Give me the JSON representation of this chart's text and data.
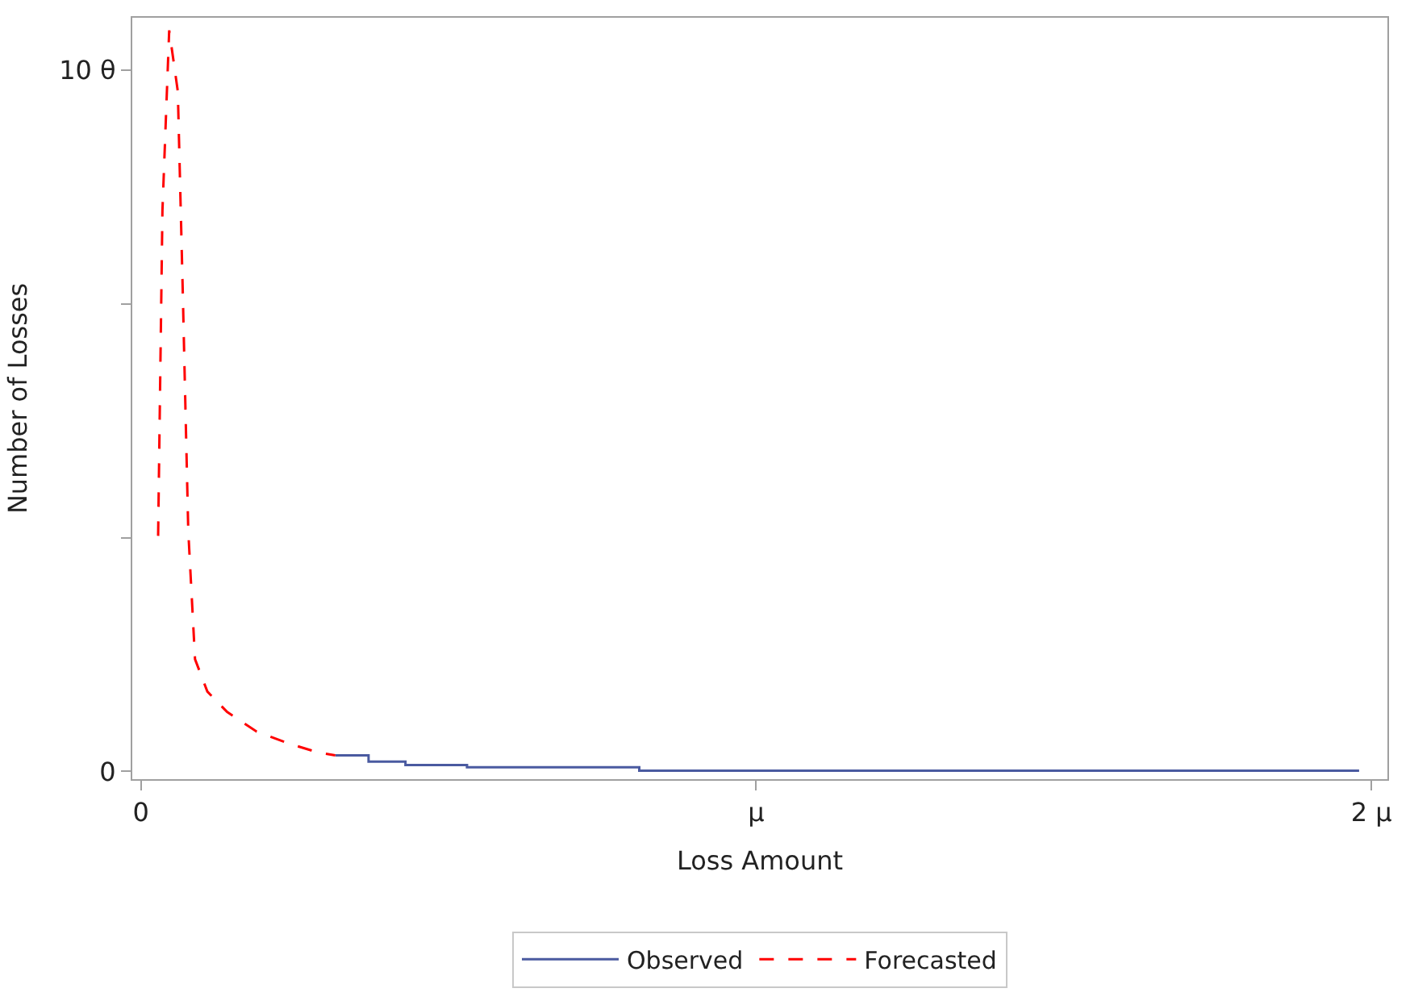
{
  "chart_data": {
    "type": "line",
    "xlabel": "Loss Amount",
    "ylabel": "Number of Losses",
    "xlim": [
      -0.014,
      2.026
    ],
    "ylim": [
      -0.11,
      10.75
    ],
    "xticks": [
      0,
      {
        "value": 1,
        "label": "μ"
      },
      {
        "value": 2,
        "label": "2 μ"
      }
    ],
    "yticks": [
      0,
      {
        "value": 3.333,
        "label": null
      },
      {
        "value": 6.667,
        "label": null
      },
      {
        "value": 10,
        "label": "10 θ"
      }
    ],
    "legend": "bottom",
    "marker": "none",
    "series": [
      {
        "name": "Observed",
        "color": "#4a5aa0",
        "line_style": "solid",
        "x": [
          0.316,
          0.37,
          0.37,
          0.43,
          0.43,
          0.53,
          0.53,
          0.81,
          0.81,
          1.98
        ],
        "values": [
          0.23,
          0.23,
          0.14,
          0.14,
          0.09,
          0.09,
          0.06,
          0.06,
          0.01,
          0.01
        ]
      },
      {
        "name": "Forecasted",
        "color": "#ff0000",
        "line_style": "dashed",
        "x": [
          0.028,
          0.035,
          0.046,
          0.06,
          0.068,
          0.077,
          0.088,
          0.108,
          0.14,
          0.188,
          0.24,
          0.288,
          0.316
        ],
        "values": [
          3.36,
          8.0,
          10.57,
          9.7,
          6.86,
          3.43,
          1.6,
          1.14,
          0.85,
          0.57,
          0.4,
          0.27,
          0.23
        ]
      }
    ]
  }
}
